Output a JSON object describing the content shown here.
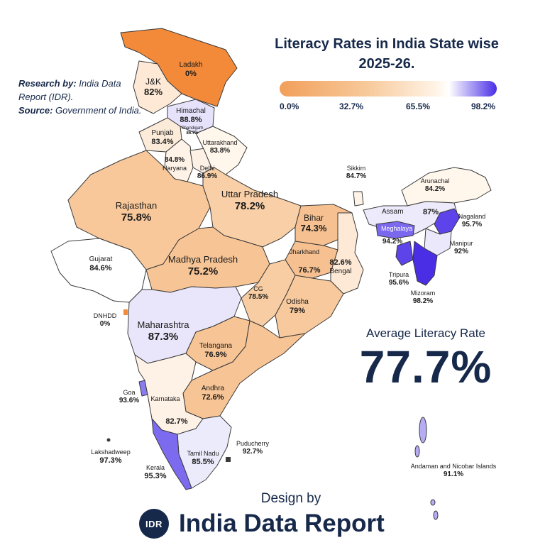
{
  "title": "Literacy Rates in India State wise\n2025-26.",
  "credit": {
    "research_label": "Research by:",
    "research_value": "India Data Report (IDR).",
    "source_label": "Source:",
    "source_value": "Government of India."
  },
  "legend": {
    "ticks": [
      "0.0%",
      "32.7%",
      "65.5%",
      "98.2%"
    ],
    "color_low": "#f29f5a",
    "color_mid": "#fff3e6",
    "color_high": "#4a2ee6"
  },
  "average": {
    "label": "Average Literacy Rate",
    "value": "77.7%"
  },
  "footer": {
    "design_by": "Design by",
    "logo_text": "IDR",
    "brand": "India Data Report"
  },
  "states": {
    "ladakh": {
      "name": "Ladakh",
      "value": "0%"
    },
    "jk": {
      "name": "J&K",
      "value": "82%"
    },
    "himachal": {
      "name": "Himachal",
      "value": "88.8%"
    },
    "chandigarh": {
      "name": "Chandigarh",
      "value": "86.7%"
    },
    "punjab": {
      "name": "Punjab",
      "value": "83.4%"
    },
    "uttarakhand": {
      "name": "Uttarakhand",
      "value": "83.8%"
    },
    "haryana": {
      "name": "Haryana",
      "value": "84.8%"
    },
    "delhi": {
      "name": "Delhi",
      "value": "86.9%"
    },
    "rajasthan": {
      "name": "Rajasthan",
      "value": "75.8%"
    },
    "uttar_pradesh": {
      "name": "Uttar Pradesh",
      "value": "78.2%"
    },
    "bihar": {
      "name": "Bihar",
      "value": "74.3%"
    },
    "sikkim": {
      "name": "Sikkim",
      "value": "84.7%"
    },
    "arunachal": {
      "name": "Arunachal",
      "value": "84.2%"
    },
    "assam": {
      "name": "Assam",
      "value": "87%"
    },
    "nagaland": {
      "name": "Nagaland",
      "value": "95.7%"
    },
    "meghalaya": {
      "name": "Meghalaya",
      "value": "94.2%"
    },
    "manipur": {
      "name": "Manipur",
      "value": "92%"
    },
    "tripura": {
      "name": "Tripura",
      "value": "95.6%"
    },
    "mizoram": {
      "name": "Mizoram",
      "value": "98.2%"
    },
    "gujarat": {
      "name": "Gujarat",
      "value": "84.6%"
    },
    "madhya_pradesh": {
      "name": "Madhya Pradesh",
      "value": "75.2%"
    },
    "jharkhand": {
      "name": "Jharkhand",
      "value": "76.7%"
    },
    "bengal": {
      "name": "Bengal",
      "value": "82.6%"
    },
    "cg": {
      "name": "CG",
      "value": "78.5%"
    },
    "odisha": {
      "name": "Odisha",
      "value": "79%"
    },
    "dnhdd": {
      "name": "DNHDD",
      "value": "0%"
    },
    "maharashtra": {
      "name": "Maharashtra",
      "value": "87.3%"
    },
    "telangana": {
      "name": "Telangana",
      "value": "76.9%"
    },
    "goa": {
      "name": "Goa",
      "value": "93.6%"
    },
    "andhra": {
      "name": "Andhra",
      "value": "72.6%"
    },
    "karnataka": {
      "name": "Karnataka",
      "value": "82.7%"
    },
    "puducherry": {
      "name": "Puducherry",
      "value": "92.7%"
    },
    "lakshadweep": {
      "name": "Lakshadweep",
      "value": "97.3%"
    },
    "tamil_nadu": {
      "name": "Tamil Nadu",
      "value": "85.5%"
    },
    "kerala": {
      "name": "Kerala",
      "value": "95.3%"
    },
    "andaman": {
      "name": "Andaman and Nicobar Islands",
      "value": "91.1%"
    }
  }
}
